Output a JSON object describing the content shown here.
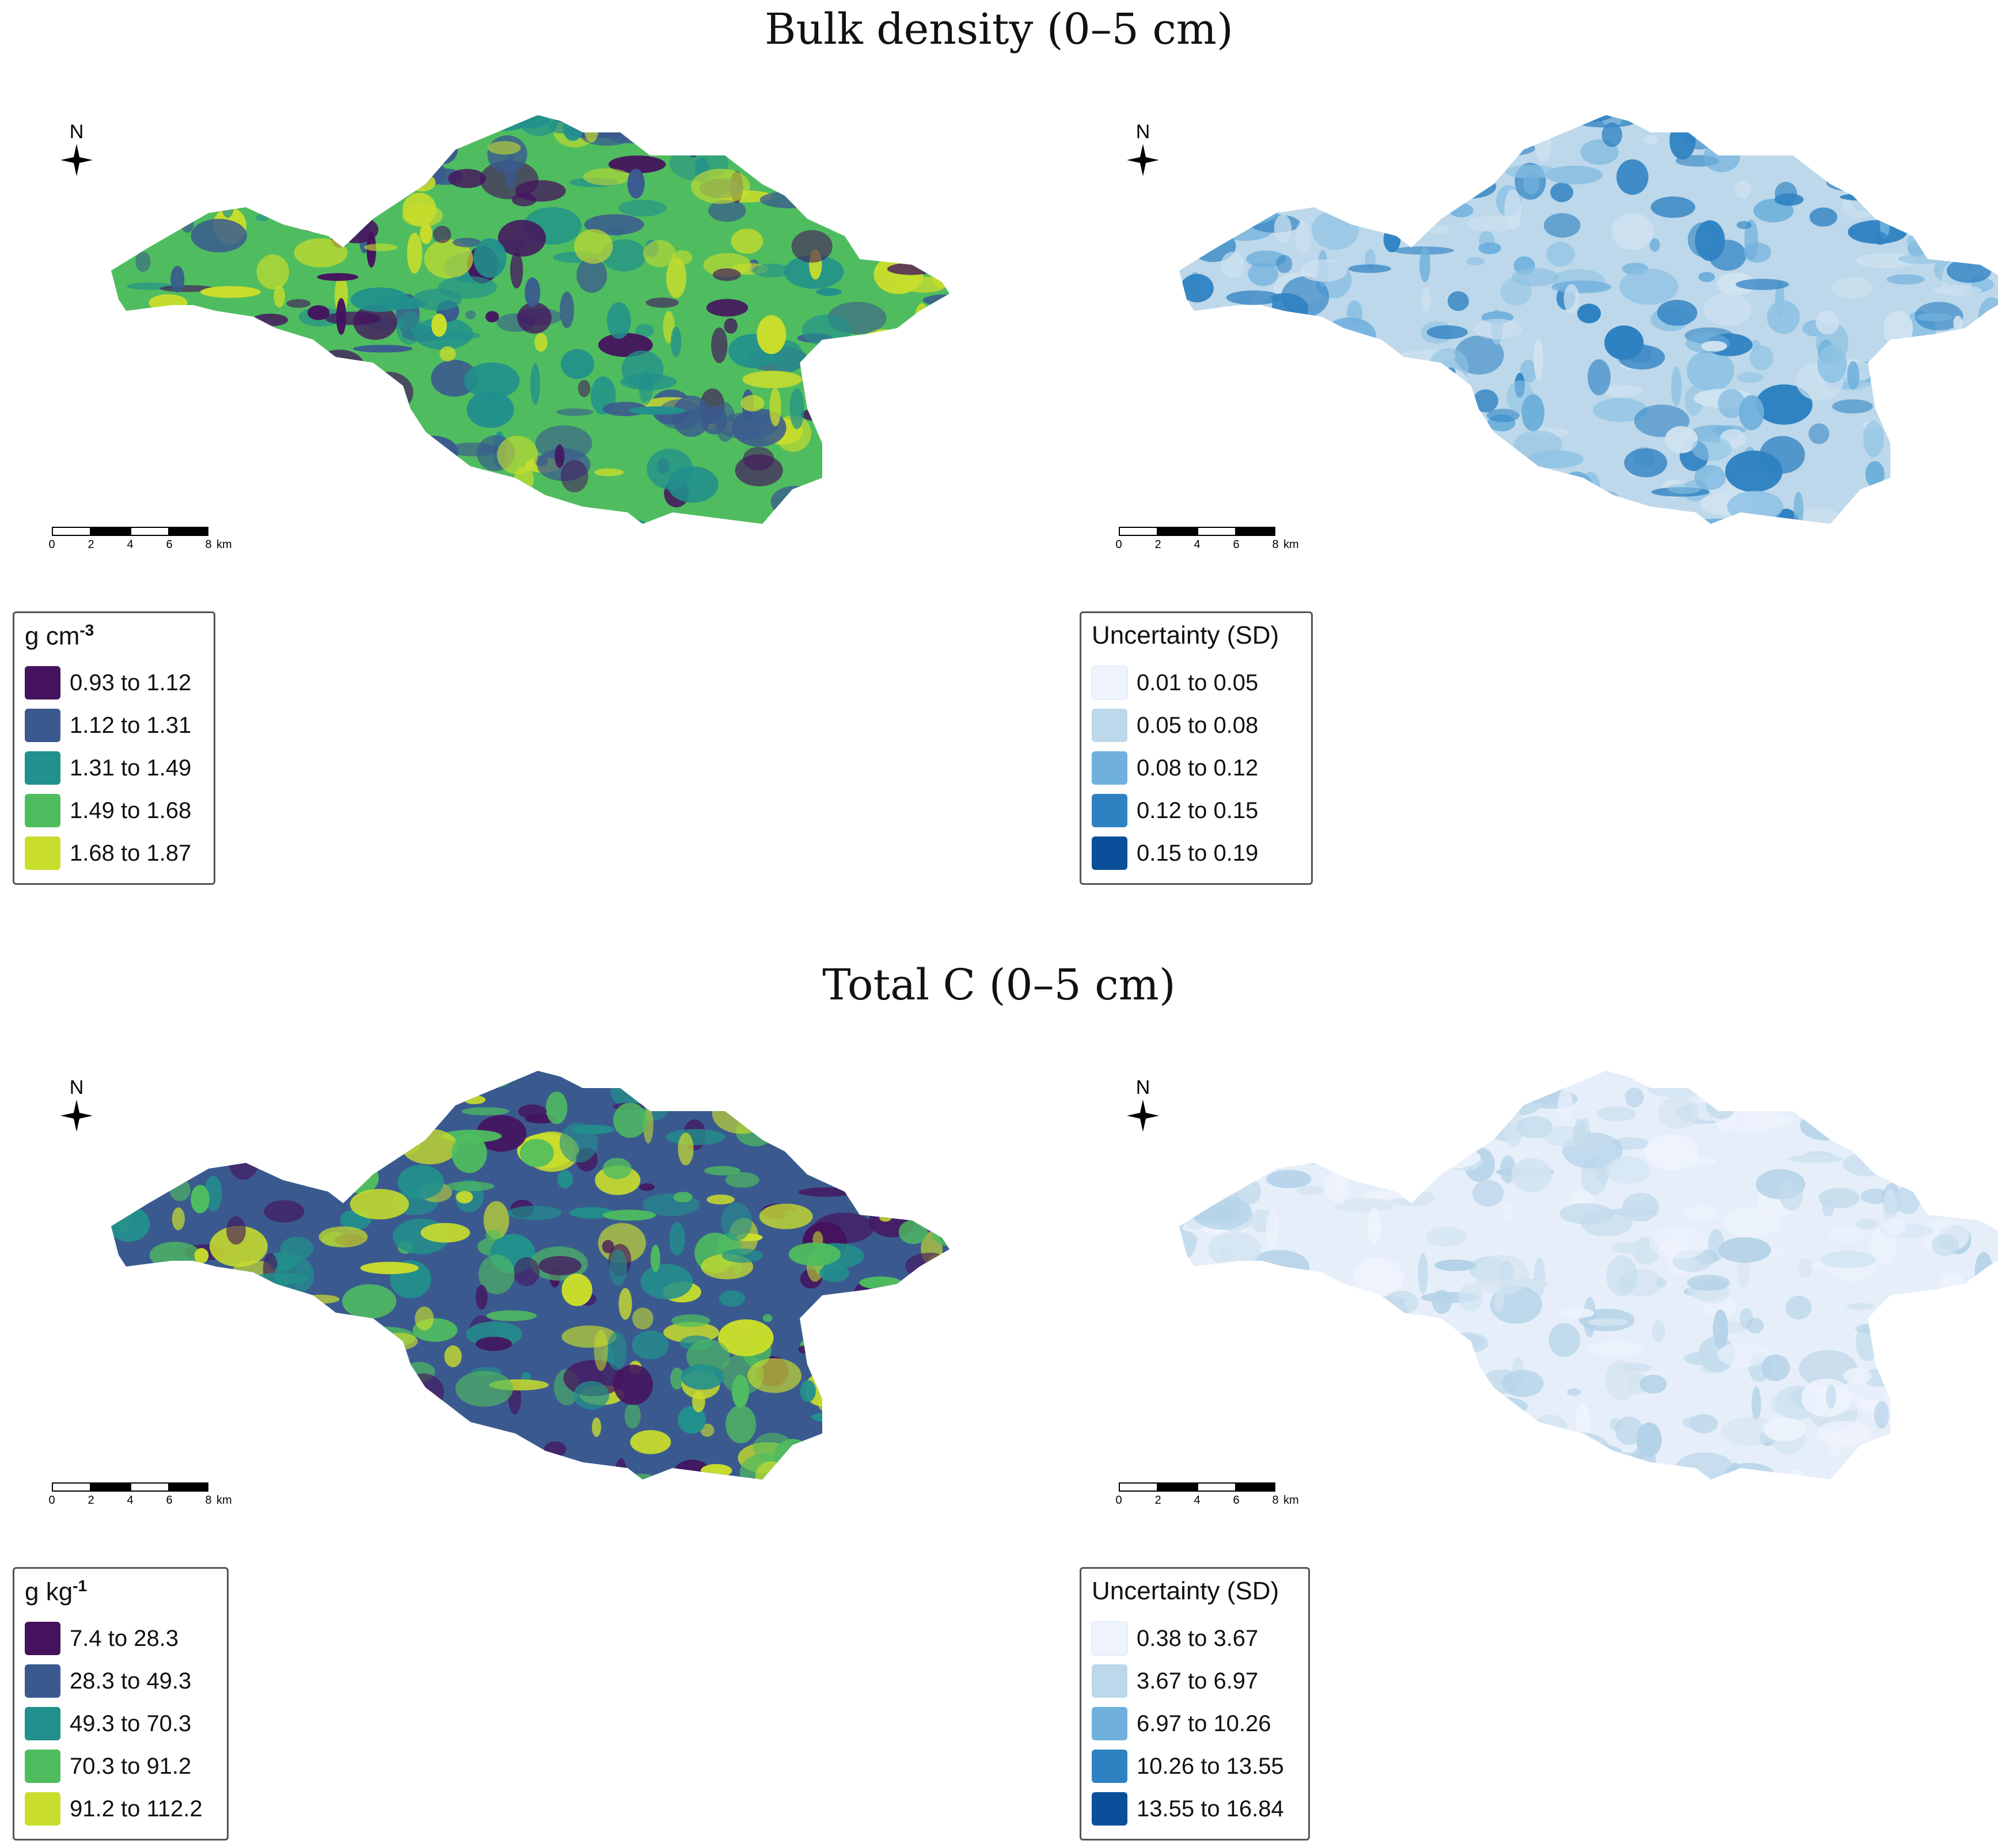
{
  "panels": [
    {
      "title": "Bulk density (0–5 cm)",
      "left_map": {
        "north_label": "N",
        "scale_ticks": [
          "0",
          "2",
          "4",
          "6",
          "8"
        ],
        "scale_unit": "km",
        "legend": {
          "title_base": "g cm",
          "title_sup": "-3",
          "classes": [
            {
              "label": "0.93 to 1.12",
              "color": "#45135e"
            },
            {
              "label": "1.12 to 1.31",
              "color": "#3a5a8f"
            },
            {
              "label": "1.31 to 1.49",
              "color": "#22908c"
            },
            {
              "label": "1.49 to 1.68",
              "color": "#4fbd5f"
            },
            {
              "label": "1.68 to 1.87",
              "color": "#c9dd2c"
            }
          ]
        },
        "fill_palette": [
          "#4fbd5f",
          "#3a5a8f",
          "#22908c",
          "#45135e",
          "#c9dd2c"
        ]
      },
      "right_map": {
        "north_label": "N",
        "scale_ticks": [
          "0",
          "2",
          "4",
          "6",
          "8"
        ],
        "scale_unit": "km",
        "legend": {
          "title_base": "Uncertainty (SD)",
          "title_sup": "",
          "classes": [
            {
              "label": "0.01 to 0.05",
              "color": "#eef3fd"
            },
            {
              "label": "0.05 to 0.08",
              "color": "#bdd8ea"
            },
            {
              "label": "0.08 to 0.12",
              "color": "#6fb0dc"
            },
            {
              "label": "0.12 to 0.15",
              "color": "#2f82c2"
            },
            {
              "label": "0.15 to 0.19",
              "color": "#0a4f9a"
            }
          ]
        },
        "fill_palette": [
          "#bdd8ea",
          "#6fb0dc",
          "#cfe2f0",
          "#2f82c2",
          "#8ec2e4"
        ]
      }
    },
    {
      "title": "Total C (0–5 cm)",
      "left_map": {
        "north_label": "N",
        "scale_ticks": [
          "0",
          "2",
          "4",
          "6",
          "8"
        ],
        "scale_unit": "km",
        "legend": {
          "title_base": "g kg",
          "title_sup": "-1",
          "classes": [
            {
              "label": "7.4 to 28.3",
              "color": "#45135e"
            },
            {
              "label": "28.3 to 49.3",
              "color": "#3a5a8f"
            },
            {
              "label": "49.3 to 70.3",
              "color": "#22908c"
            },
            {
              "label": "70.3 to 91.2",
              "color": "#4fbd5f"
            },
            {
              "label": "91.2 to 112.2",
              "color": "#c9dd2c"
            }
          ]
        },
        "fill_palette": [
          "#3a5a8f",
          "#45135e",
          "#22908c",
          "#4fbd5f",
          "#c9dd2c"
        ]
      },
      "right_map": {
        "north_label": "N",
        "scale_ticks": [
          "0",
          "2",
          "4",
          "6",
          "8"
        ],
        "scale_unit": "km",
        "legend": {
          "title_base": "Uncertainty (SD)",
          "title_sup": "",
          "classes": [
            {
              "label": "0.38 to 3.67",
              "color": "#eef3fd"
            },
            {
              "label": "3.67 to 6.97",
              "color": "#bdd8ea"
            },
            {
              "label": "6.97 to 10.26",
              "color": "#6fb0dc"
            },
            {
              "label": "10.26 to 13.55",
              "color": "#2f82c2"
            },
            {
              "label": "13.55 to 16.84",
              "color": "#0a4f9a"
            }
          ]
        },
        "fill_palette": [
          "#e6eff9",
          "#d3e4f1",
          "#c3dbec",
          "#eef3fd",
          "#b4d2e8"
        ]
      }
    }
  ]
}
